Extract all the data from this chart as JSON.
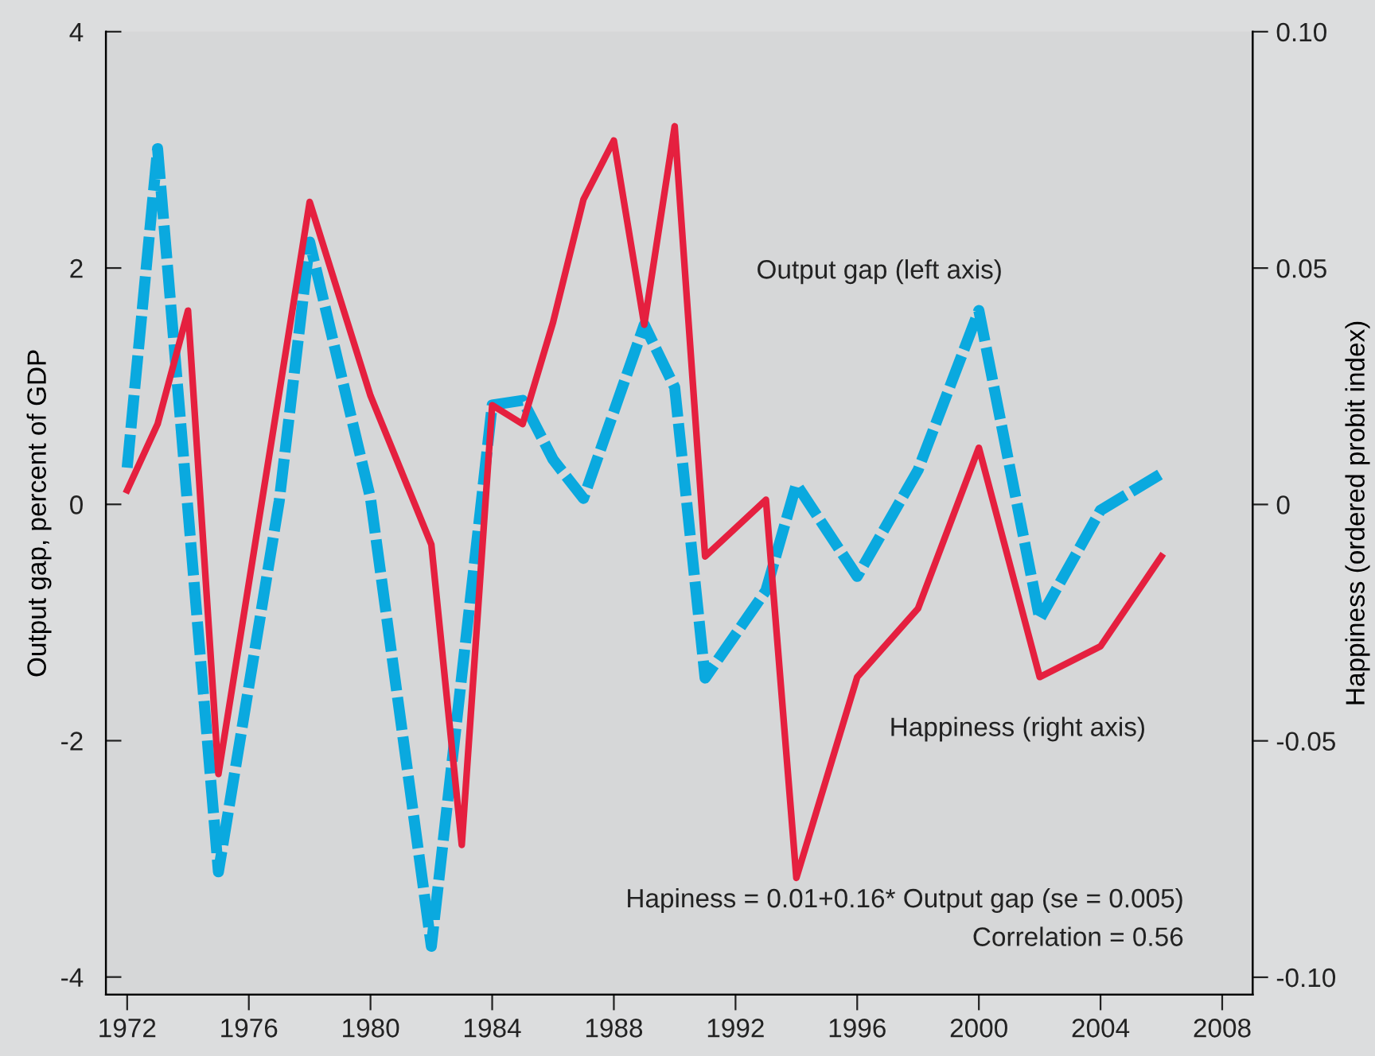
{
  "chart_data": {
    "type": "line",
    "ylabel": "Output gap, percent of GDP",
    "y2label": "Happiness (ordered probit index)",
    "xlim": [
      1971.3,
      2009
    ],
    "xticks": [
      1972,
      1976,
      1980,
      1984,
      1988,
      1992,
      1996,
      2000,
      2004,
      2008
    ],
    "ylim": [
      -4.15,
      4
    ],
    "yticks": [
      4,
      2,
      0,
      {
        "value": -2,
        "label": "-2"
      },
      {
        "value": -4,
        "label": "-4"
      }
    ],
    "y2lim": [
      -0.1037,
      0.1
    ],
    "y2ticks": [
      {
        "value": 0.1,
        "label": "0.10"
      },
      0.05,
      0,
      {
        "value": -0.05,
        "label": "-0.05"
      },
      {
        "value": -0.1,
        "label": "-0.10"
      }
    ],
    "grid": false,
    "legend": false,
    "series": [
      {
        "name": "Output gap (left axis)",
        "color": "#0aa9df",
        "line_style": "dashed",
        "x": [
          1972,
          1973,
          1975,
          1977,
          1978,
          1980,
          1982,
          1984,
          1985,
          1986,
          1987,
          1989,
          1990,
          1991,
          1993,
          1994,
          1996,
          1998,
          2000,
          2002,
          2004,
          2006
        ],
        "values": [
          0.31,
          3.01,
          -3.11,
          0.03,
          2.22,
          0.05,
          -3.74,
          0.84,
          0.88,
          0.38,
          0.05,
          1.52,
          0.99,
          -1.47,
          -0.73,
          0.17,
          -0.61,
          0.29,
          1.64,
          -0.97,
          -0.05,
          0.26
        ]
      },
      {
        "name": "Happiness (right axis)",
        "color": "#e5203f",
        "line_style": "solid",
        "axis": "y2",
        "x": [
          1972,
          1973,
          1974,
          1975,
          1978,
          1980,
          1982,
          1983,
          1984,
          1985,
          1986,
          1987,
          1988,
          1989,
          1990,
          1991,
          1993,
          1994,
          1996,
          1998,
          2000,
          2002,
          2004,
          2006
        ],
        "values": [
          0.003,
          0.017,
          0.041,
          -0.057,
          0.064,
          0.023,
          -0.0085,
          -0.072,
          0.021,
          0.017,
          0.0385,
          0.0645,
          0.077,
          0.038,
          0.08,
          -0.011,
          0.001,
          -0.079,
          -0.0365,
          -0.022,
          0.012,
          -0.0365,
          -0.03,
          -0.011
        ]
      }
    ],
    "annotations": [
      "Hapiness = 0.01+0.16* Output gap (se = 0.005)",
      "Correlation = 0.56"
    ]
  }
}
